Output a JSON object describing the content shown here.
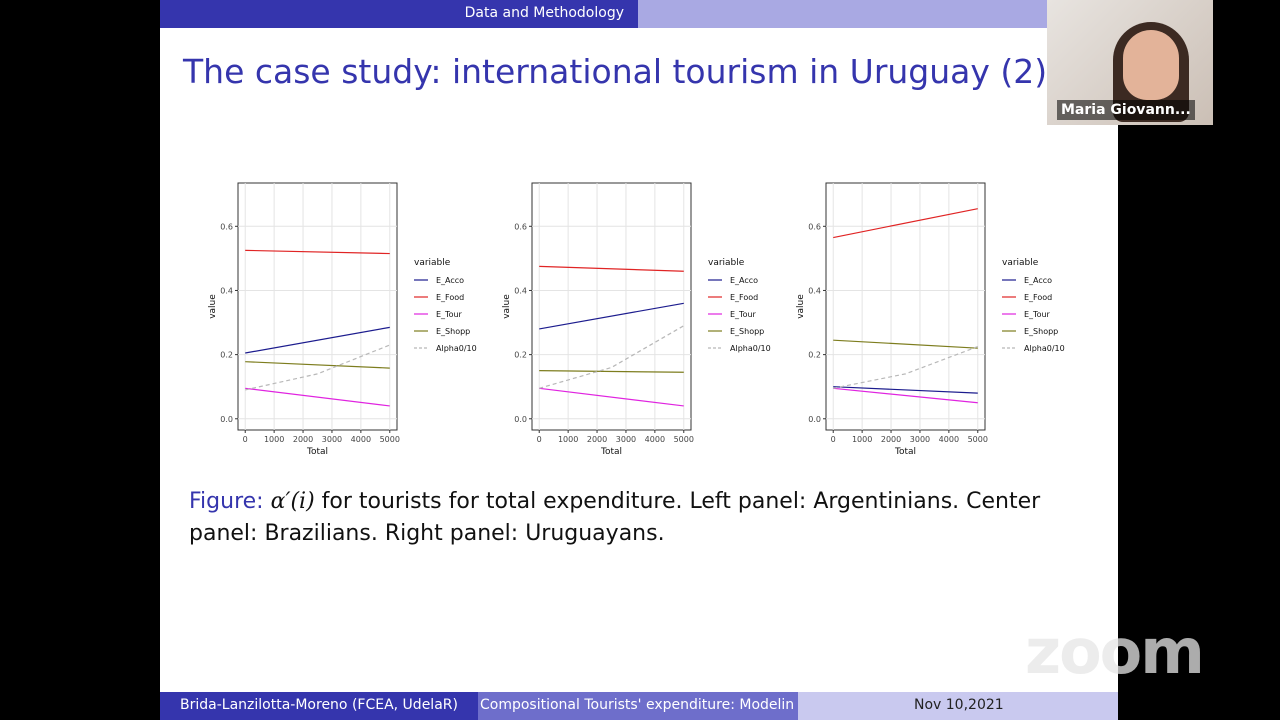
{
  "header": {
    "section": "Data and Methodology"
  },
  "video": {
    "name": "Maria Giovann..."
  },
  "slide": {
    "title": "The case study: international tourism in Uruguay (2)",
    "charts": [
      {
        "type": "line",
        "x_label": "Total",
        "y_label": "value",
        "legend_title": "variable",
        "xlim": [
          -250,
          5250
        ],
        "ylim": [
          -0.035,
          0.735
        ],
        "xticks": [
          0,
          1000,
          2000,
          3000,
          4000,
          5000
        ],
        "yticks": [
          {
            "value": 0,
            "label": "0.0"
          },
          0.2,
          0.4,
          0.6
        ],
        "series": [
          {
            "name": "E_Acco",
            "color": "#1c1c8e",
            "x": [
              0,
              5000
            ],
            "values": [
              0.205,
              0.285
            ]
          },
          {
            "name": "E_Food",
            "color": "#e02424",
            "x": [
              0,
              5000
            ],
            "values": [
              0.525,
              0.515
            ]
          },
          {
            "name": "E_Tour",
            "color": "#e024e0",
            "x": [
              0,
              5000
            ],
            "values": [
              0.095,
              0.04
            ]
          },
          {
            "name": "E_Shopp",
            "color": "#7d7d1e",
            "x": [
              0,
              5000
            ],
            "values": [
              0.178,
              0.158
            ]
          },
          {
            "name": "Alpha0/10",
            "color": "#b8b8b8",
            "dashed": true,
            "x": [
              0,
              2500,
              5000
            ],
            "values": [
              0.09,
              0.14,
              0.23
            ]
          }
        ]
      },
      {
        "type": "line",
        "x_label": "Total",
        "y_label": "value",
        "legend_title": "variable",
        "xlim": [
          -250,
          5250
        ],
        "ylim": [
          -0.035,
          0.735
        ],
        "xticks": [
          0,
          1000,
          2000,
          3000,
          4000,
          5000
        ],
        "yticks": [
          {
            "value": 0,
            "label": "0.0"
          },
          0.2,
          0.4,
          0.6
        ],
        "series": [
          {
            "name": "E_Acco",
            "color": "#1c1c8e",
            "x": [
              0,
              5000
            ],
            "values": [
              0.28,
              0.36
            ]
          },
          {
            "name": "E_Food",
            "color": "#e02424",
            "x": [
              0,
              5000
            ],
            "values": [
              0.475,
              0.46
            ]
          },
          {
            "name": "E_Tour",
            "color": "#e024e0",
            "x": [
              0,
              5000
            ],
            "values": [
              0.095,
              0.04
            ]
          },
          {
            "name": "E_Shopp",
            "color": "#7d7d1e",
            "x": [
              0,
              5000
            ],
            "values": [
              0.15,
              0.145
            ]
          },
          {
            "name": "Alpha0/10",
            "color": "#b8b8b8",
            "dashed": true,
            "x": [
              0,
              2500,
              5000
            ],
            "values": [
              0.095,
              0.16,
              0.29
            ]
          }
        ]
      },
      {
        "type": "line",
        "x_label": "Total",
        "y_label": "value",
        "legend_title": "variable",
        "xlim": [
          -250,
          5250
        ],
        "ylim": [
          -0.035,
          0.735
        ],
        "xticks": [
          0,
          1000,
          2000,
          3000,
          4000,
          5000
        ],
        "yticks": [
          {
            "value": 0,
            "label": "0.0"
          },
          0.2,
          0.4,
          0.6
        ],
        "series": [
          {
            "name": "E_Acco",
            "color": "#1c1c8e",
            "x": [
              0,
              5000
            ],
            "values": [
              0.1,
              0.08
            ]
          },
          {
            "name": "E_Food",
            "color": "#e02424",
            "x": [
              0,
              5000
            ],
            "values": [
              0.565,
              0.655
            ]
          },
          {
            "name": "E_Tour",
            "color": "#e024e0",
            "x": [
              0,
              5000
            ],
            "values": [
              0.095,
              0.05
            ]
          },
          {
            "name": "E_Shopp",
            "color": "#7d7d1e",
            "x": [
              0,
              5000
            ],
            "values": [
              0.245,
              0.22
            ]
          },
          {
            "name": "Alpha0/10",
            "color": "#b8b8b8",
            "dashed": true,
            "x": [
              0,
              2500,
              5000
            ],
            "values": [
              0.095,
              0.14,
              0.225
            ]
          }
        ]
      }
    ],
    "caption": {
      "label": "Figure:",
      "math": "α′(i)",
      "text": "for tourists for total expenditure. Left panel: Argentinians. Center panel: Brazilians. Right panel: Uruguayans."
    }
  },
  "footer": {
    "authors": "Brida-Lanzilotta-Moreno (FCEA, UdelaR)",
    "talk": "Compositional Tourists' expenditure: Modelin",
    "date": "Nov 10,2021"
  },
  "watermark": "zoom"
}
